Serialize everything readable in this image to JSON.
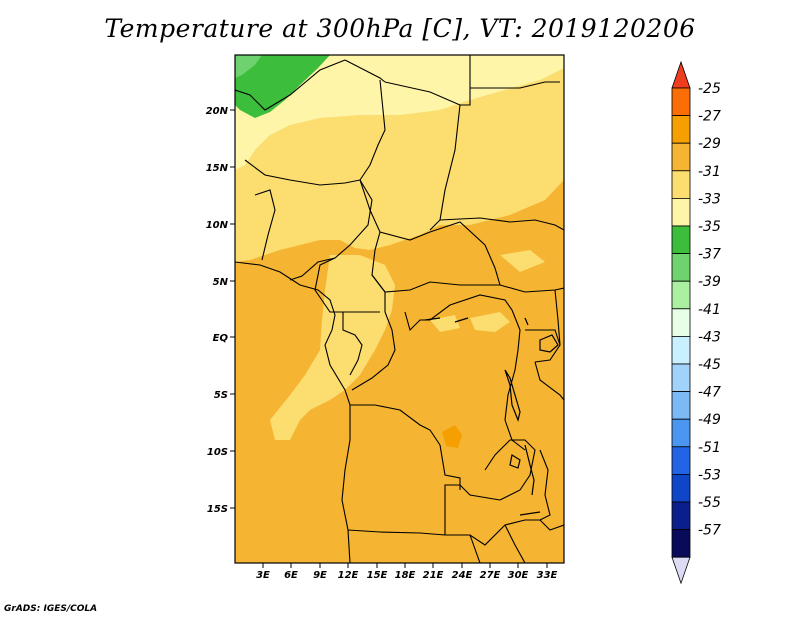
{
  "title": "Temperature at 300hPa [C], VT: 2019120206",
  "credit": "GrADS: IGES/COLA",
  "lat_labels": [
    "20N",
    "15N",
    "10N",
    "5N",
    "EQ",
    "5S",
    "10S",
    "15S"
  ],
  "lon_labels": [
    "3E",
    "6E",
    "9E",
    "12E",
    "15E",
    "18E",
    "21E",
    "24E",
    "27E",
    "30E",
    "33E"
  ],
  "colorbar": {
    "labels": [
      "-25",
      "-27",
      "-29",
      "-31",
      "-33",
      "-35",
      "-37",
      "-39",
      "-41",
      "-43",
      "-45",
      "-47",
      "-49",
      "-51",
      "-53",
      "-55",
      "-57"
    ],
    "colors": [
      "#f03c1e",
      "#fa6e05",
      "#f5a000",
      "#f5b432",
      "#fbdd70",
      "#fff5a8",
      "#3cbe3c",
      "#6ed26e",
      "#aaf0a0",
      "#e6ffe6",
      "#c8f0ff",
      "#a0d2fa",
      "#7cb9f5",
      "#4b96f0",
      "#2364e6",
      "#0f46c8",
      "#0a1e8c",
      "#0a0a5a",
      "#dcdcf5"
    ]
  },
  "map_colors": {
    "t31": "#f5b432",
    "t33": "#fbdd70",
    "t35": "#fff5a8",
    "t37": "#3cbe3c",
    "t29": "#f5a000",
    "border": "#000000"
  }
}
